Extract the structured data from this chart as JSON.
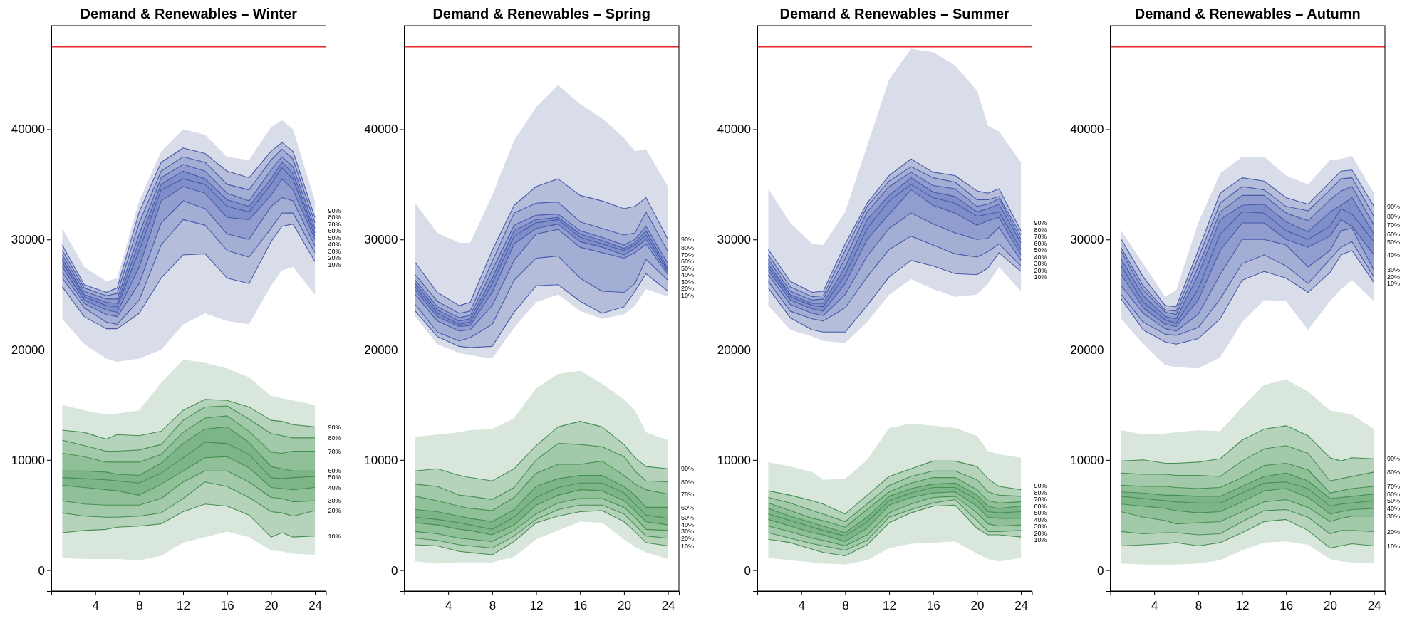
{
  "chart_data": [
    {
      "type": "line",
      "title": "Demand & Renewables – Winter",
      "x": [
        1,
        3,
        5,
        6,
        8,
        10,
        12,
        14,
        16,
        18,
        20,
        21,
        22,
        24
      ],
      "xlim": [
        0,
        25
      ],
      "xticks": [
        4,
        8,
        12,
        16,
        20,
        24
      ],
      "ylim": [
        -1900,
        49400
      ],
      "yticks": [
        0,
        10000,
        20000,
        30000,
        40000
      ],
      "legend": false,
      "grid": false,
      "marker": "none",
      "line_style": "solid",
      "ref_lines": [
        {
          "axis": "y",
          "value": 47500,
          "color": "#e8262a"
        }
      ],
      "series": [
        {
          "name": "10%",
          "color": "#4b61b5",
          "values": [
            25700,
            23000,
            21900,
            21900,
            23300,
            26500,
            28600,
            28700,
            26500,
            26000,
            29800,
            31200,
            31400,
            28000
          ]
        },
        {
          "name": "20%",
          "color": "#4b61b5",
          "values": [
            26500,
            23800,
            22500,
            22300,
            24500,
            29500,
            31800,
            31300,
            29000,
            28400,
            31000,
            32400,
            32400,
            28800
          ]
        },
        {
          "name": "30%",
          "color": "#4b61b5",
          "values": [
            27000,
            24200,
            23200,
            23000,
            26000,
            31500,
            33500,
            32800,
            30500,
            30000,
            33000,
            33800,
            33500,
            29400
          ]
        },
        {
          "name": "40%",
          "color": "#4b61b5",
          "values": [
            27500,
            24500,
            23600,
            23400,
            27500,
            33500,
            34800,
            34200,
            32000,
            31800,
            34000,
            35500,
            34500,
            30000
          ]
        },
        {
          "name": "50%",
          "color": "#4b61b5",
          "values": [
            27900,
            24800,
            24000,
            23900,
            29000,
            34500,
            35500,
            35000,
            33000,
            32500,
            35000,
            36500,
            35500,
            30300
          ],
          "lower": [
            22800,
            20500,
            19200,
            18900,
            19200,
            20000,
            22300,
            23300,
            22600,
            22300,
            25800,
            27200,
            27500,
            25000
          ],
          "upper": [
            31000,
            27500,
            26200,
            26500,
            33500,
            38000,
            40000,
            39500,
            37500,
            37200,
            40200,
            40800,
            40000,
            33500
          ]
        },
        {
          "name": "60%",
          "color": "#4b61b5",
          "values": [
            28200,
            25000,
            24300,
            24200,
            29800,
            35000,
            36200,
            35500,
            33600,
            33000,
            35500,
            37000,
            36000,
            30600
          ]
        },
        {
          "name": "70%",
          "color": "#4b61b5",
          "values": [
            28600,
            25300,
            24600,
            24600,
            30500,
            35600,
            36800,
            36200,
            34200,
            33500,
            36300,
            37500,
            36600,
            31000
          ]
        },
        {
          "name": "80%",
          "color": "#4b61b5",
          "values": [
            29000,
            25600,
            24900,
            25100,
            31500,
            36200,
            37500,
            37000,
            35000,
            34500,
            37200,
            38200,
            37300,
            31500
          ]
        },
        {
          "name": "90%",
          "color": "#4b61b5",
          "values": [
            29500,
            25900,
            25200,
            25600,
            32500,
            37000,
            38300,
            37800,
            36200,
            35600,
            38000,
            38800,
            38000,
            32000
          ]
        },
        {
          "name": "10%",
          "color": "#4a9a58",
          "values": [
            3400,
            3600,
            3700,
            3900,
            4000,
            4200,
            5300,
            6000,
            5800,
            5000,
            3000,
            3400,
            3000,
            3100
          ]
        },
        {
          "name": "20%",
          "color": "#4a9a58",
          "values": [
            5200,
            4900,
            4800,
            4800,
            4900,
            5200,
            6500,
            8000,
            7600,
            6600,
            5300,
            5200,
            4900,
            5400
          ]
        },
        {
          "name": "30%",
          "color": "#4a9a58",
          "values": [
            6300,
            6000,
            5900,
            5900,
            5900,
            6500,
            8000,
            9000,
            9000,
            8000,
            6600,
            6500,
            6200,
            6300
          ]
        },
        {
          "name": "40%",
          "color": "#4a9a58",
          "values": [
            7700,
            7500,
            7300,
            7200,
            6800,
            7800,
            9000,
            10200,
            10300,
            9300,
            7500,
            7400,
            7300,
            7500
          ]
        },
        {
          "name": "50%",
          "color": "#4a9a58",
          "values": [
            8400,
            8300,
            8200,
            8100,
            7900,
            8800,
            10200,
            11600,
            11500,
            10500,
            8400,
            8300,
            8400,
            8500
          ],
          "lower": [
            1100,
            1000,
            1000,
            1000,
            900,
            1300,
            2500,
            3000,
            3500,
            3000,
            1800,
            1700,
            1500,
            1400
          ],
          "upper": [
            15000,
            14500,
            14100,
            14200,
            14500,
            17000,
            19100,
            18800,
            18300,
            17500,
            15800,
            15600,
            15400,
            15000
          ]
        },
        {
          "name": "60%",
          "color": "#4a9a58",
          "values": [
            9000,
            9000,
            8900,
            8700,
            8600,
            9700,
            11500,
            12800,
            13000,
            11600,
            9400,
            9200,
            9000,
            9000
          ]
        },
        {
          "name": "70%",
          "color": "#4a9a58",
          "values": [
            10600,
            10300,
            9800,
            9800,
            9800,
            10500,
            12500,
            13800,
            14000,
            12600,
            10700,
            10600,
            10800,
            10800
          ]
        },
        {
          "name": "80%",
          "color": "#4a9a58",
          "values": [
            11800,
            11300,
            10800,
            10800,
            10900,
            11400,
            13600,
            14800,
            14900,
            13700,
            12400,
            12200,
            12000,
            12000
          ]
        },
        {
          "name": "90%",
          "color": "#4a9a58",
          "values": [
            12700,
            12500,
            11900,
            12300,
            12200,
            12600,
            14500,
            15500,
            15400,
            14800,
            13600,
            13500,
            13200,
            13000
          ]
        }
      ]
    },
    {
      "type": "line",
      "title": "Demand & Renewables – Spring",
      "x": [
        1,
        3,
        5,
        6,
        8,
        10,
        12,
        14,
        16,
        18,
        20,
        21,
        22,
        24
      ],
      "xlim": [
        0,
        25
      ],
      "xticks": [
        4,
        8,
        12,
        16,
        20,
        24
      ],
      "ylim": [
        -1900,
        49400
      ],
      "yticks": [
        0,
        10000,
        20000,
        30000,
        40000
      ],
      "legend": false,
      "grid": false,
      "marker": "none",
      "line_style": "solid",
      "ref_lines": [
        {
          "axis": "y",
          "value": 47500,
          "color": "#e8262a"
        }
      ],
      "series": [
        {
          "name": "10%",
          "color": "#4b61b5",
          "values": [
            23500,
            21200,
            20300,
            20200,
            20300,
            23400,
            25800,
            25900,
            24400,
            23300,
            23900,
            25300,
            26900,
            25300
          ]
        },
        {
          "name": "20%",
          "color": "#4b61b5",
          "values": [
            24100,
            21600,
            20800,
            21100,
            22300,
            26300,
            28300,
            28500,
            26500,
            25300,
            25200,
            26000,
            28200,
            26300
          ]
        },
        {
          "name": "30%",
          "color": "#4b61b5",
          "values": [
            25000,
            22600,
            21700,
            21800,
            24000,
            28100,
            30500,
            30900,
            29300,
            28800,
            28300,
            28800,
            29600,
            26800
          ]
        },
        {
          "name": "40%",
          "color": "#4b61b5",
          "values": [
            25400,
            23000,
            22100,
            22200,
            25200,
            29600,
            31000,
            31400,
            29800,
            29300,
            28600,
            29200,
            30000,
            27000
          ]
        },
        {
          "name": "50%",
          "color": "#4b61b5",
          "values": [
            25700,
            23300,
            22300,
            22500,
            26000,
            30300,
            31500,
            31800,
            30200,
            29600,
            29000,
            29500,
            30400,
            27200
          ],
          "lower": [
            23000,
            20500,
            19700,
            19500,
            19200,
            22000,
            24300,
            25000,
            23500,
            22800,
            23200,
            24000,
            25500,
            24800
          ],
          "upper": [
            33300,
            30600,
            29700,
            29700,
            34000,
            39000,
            42000,
            44000,
            42300,
            41000,
            39200,
            38000,
            38200,
            34800
          ]
        },
        {
          "name": "60%",
          "color": "#4b61b5",
          "values": [
            26000,
            23600,
            22600,
            22800,
            26500,
            30800,
            31800,
            32000,
            30500,
            29900,
            29200,
            29700,
            30800,
            27400
          ]
        },
        {
          "name": "70%",
          "color": "#4b61b5",
          "values": [
            26300,
            23900,
            22900,
            23100,
            27200,
            31300,
            32200,
            32300,
            30800,
            30200,
            29500,
            30000,
            31200,
            27800
          ]
        },
        {
          "name": "80%",
          "color": "#4b61b5",
          "values": [
            26800,
            24400,
            23300,
            23500,
            28000,
            32400,
            33300,
            33400,
            31600,
            31000,
            30400,
            30600,
            32500,
            28900
          ]
        },
        {
          "name": "90%",
          "color": "#4b61b5",
          "values": [
            27900,
            25200,
            24000,
            24300,
            29000,
            33100,
            34800,
            35500,
            34000,
            33500,
            32800,
            33000,
            33800,
            30000
          ]
        },
        {
          "name": "10%",
          "color": "#4a9a58",
          "values": [
            2300,
            2200,
            1700,
            1600,
            1400,
            2600,
            4300,
            4900,
            5300,
            5400,
            4400,
            3500,
            2500,
            2200
          ]
        },
        {
          "name": "20%",
          "color": "#4a9a58",
          "values": [
            2900,
            2700,
            2300,
            2200,
            2000,
            3100,
            4600,
            5500,
            5900,
            5900,
            5100,
            4100,
            3100,
            2900
          ]
        },
        {
          "name": "30%",
          "color": "#4a9a58",
          "values": [
            3500,
            3300,
            2900,
            2800,
            2600,
            3600,
            5100,
            6100,
            6500,
            6500,
            5700,
            4800,
            3700,
            3600
          ]
        },
        {
          "name": "40%",
          "color": "#4a9a58",
          "values": [
            4300,
            4100,
            3700,
            3600,
            3200,
            4100,
            5900,
            6800,
            7300,
            7200,
            6300,
            5400,
            4400,
            4100
          ]
        },
        {
          "name": "50%",
          "color": "#4a9a58",
          "values": [
            4800,
            4600,
            4300,
            4100,
            3700,
            4800,
            6600,
            7500,
            7900,
            7900,
            7000,
            6000,
            5000,
            4700
          ],
          "lower": [
            800,
            600,
            700,
            700,
            700,
            1200,
            2800,
            3600,
            4400,
            4300,
            2800,
            2100,
            1600,
            1000
          ],
          "upper": [
            12100,
            12300,
            12500,
            12700,
            12800,
            13800,
            16500,
            17800,
            18100,
            16900,
            15500,
            14500,
            12500,
            11800
          ]
        },
        {
          "name": "60%",
          "color": "#4a9a58",
          "values": [
            5500,
            5300,
            4900,
            4700,
            4400,
            5500,
            7600,
            8300,
            8600,
            8600,
            7600,
            6800,
            5700,
            5700
          ]
        },
        {
          "name": "70%",
          "color": "#4a9a58",
          "values": [
            6700,
            6300,
            5800,
            5600,
            5400,
            6600,
            8800,
            9600,
            9600,
            9900,
            8600,
            7800,
            7300,
            6900
          ]
        },
        {
          "name": "80%",
          "color": "#4a9a58",
          "values": [
            7800,
            7600,
            6800,
            6700,
            6400,
            7500,
            10000,
            11500,
            11400,
            11200,
            10300,
            9000,
            8100,
            8000
          ]
        },
        {
          "name": "90%",
          "color": "#4a9a58",
          "values": [
            9000,
            9200,
            8600,
            8400,
            8100,
            9200,
            11300,
            13000,
            13500,
            13000,
            11400,
            10200,
            9400,
            9200
          ]
        }
      ]
    },
    {
      "type": "line",
      "title": "Demand & Renewables – Summer",
      "x": [
        1,
        3,
        5,
        6,
        8,
        10,
        12,
        14,
        16,
        18,
        20,
        21,
        22,
        24
      ],
      "xlim": [
        0,
        25
      ],
      "xticks": [
        4,
        8,
        12,
        16,
        20,
        24
      ],
      "ylim": [
        -1900,
        49400
      ],
      "yticks": [
        0,
        10000,
        20000,
        30000,
        40000
      ],
      "legend": false,
      "grid": false,
      "marker": "none",
      "line_style": "solid",
      "ref_lines": [
        {
          "axis": "y",
          "value": 47500,
          "color": "#e8262a"
        }
      ],
      "series": [
        {
          "name": "10%",
          "color": "#4b61b5",
          "values": [
            25600,
            22900,
            21800,
            21600,
            21600,
            24000,
            26600,
            28100,
            27600,
            26900,
            26800,
            27400,
            28800,
            27100
          ]
        },
        {
          "name": "20%",
          "color": "#4b61b5",
          "values": [
            26200,
            23500,
            22800,
            22600,
            23800,
            26600,
            29100,
            30300,
            29500,
            28700,
            28400,
            28900,
            29600,
            27600
          ]
        },
        {
          "name": "30%",
          "color": "#4b61b5",
          "values": [
            26800,
            24100,
            23300,
            23100,
            25000,
            28500,
            31000,
            32400,
            31400,
            30600,
            30000,
            30100,
            31100,
            28100
          ]
        },
        {
          "name": "40%",
          "color": "#4b61b5",
          "values": [
            27200,
            24500,
            23700,
            23500,
            26000,
            30000,
            32300,
            34500,
            33100,
            32400,
            31300,
            31700,
            32000,
            28600
          ]
        },
        {
          "name": "50%",
          "color": "#4b61b5",
          "values": [
            27500,
            24800,
            24000,
            23900,
            26800,
            31000,
            33500,
            35000,
            33800,
            33300,
            32100,
            32300,
            32500,
            29100
          ],
          "lower": [
            24000,
            21800,
            21200,
            20800,
            20600,
            22500,
            25000,
            26400,
            25500,
            24800,
            25000,
            26000,
            27500,
            25300
          ],
          "upper": [
            34600,
            31500,
            29600,
            29500,
            32500,
            38500,
            44500,
            47300,
            47000,
            45800,
            43500,
            40300,
            39800,
            37000
          ]
        },
        {
          "name": "60%",
          "color": "#4b61b5",
          "values": [
            27800,
            25000,
            24200,
            24200,
            27500,
            31800,
            34000,
            35600,
            34300,
            33900,
            32500,
            32800,
            33200,
            29700
          ]
        },
        {
          "name": "70%",
          "color": "#4b61b5",
          "values": [
            28200,
            25300,
            24500,
            24600,
            28300,
            32500,
            34800,
            36100,
            34900,
            34600,
            33000,
            33200,
            33700,
            30000
          ]
        },
        {
          "name": "80%",
          "color": "#4b61b5",
          "values": [
            28600,
            25700,
            24800,
            24900,
            29000,
            33000,
            35300,
            36600,
            35600,
            35200,
            33600,
            33600,
            33900,
            30400
          ]
        },
        {
          "name": "90%",
          "color": "#4b61b5",
          "values": [
            29100,
            26200,
            25200,
            25300,
            29600,
            33300,
            35800,
            37300,
            36100,
            35800,
            34400,
            34200,
            34600,
            30800
          ]
        },
        {
          "name": "10%",
          "color": "#4a9a58",
          "values": [
            2800,
            2500,
            1900,
            1600,
            1300,
            2300,
            4300,
            5200,
            5800,
            5900,
            3800,
            3200,
            3200,
            3000
          ]
        },
        {
          "name": "20%",
          "color": "#4a9a58",
          "values": [
            3400,
            2900,
            2400,
            2200,
            1800,
            2700,
            4800,
            5500,
            6100,
            6400,
            4500,
            3500,
            3500,
            3600
          ]
        },
        {
          "name": "30%",
          "color": "#4a9a58",
          "values": [
            4000,
            3500,
            2900,
            2700,
            2200,
            3200,
            5200,
            6000,
            6600,
            6700,
            5200,
            4200,
            4000,
            4100
          ]
        },
        {
          "name": "40%",
          "color": "#4a9a58",
          "values": [
            4600,
            4000,
            3400,
            3200,
            2600,
            3800,
            5900,
            6600,
            7000,
            7100,
            5800,
            4800,
            4700,
            4700
          ]
        },
        {
          "name": "50%",
          "color": "#4a9a58",
          "values": [
            5100,
            4500,
            3900,
            3600,
            3100,
            4400,
            6300,
            7000,
            7500,
            7500,
            6400,
            5300,
            5200,
            5300
          ],
          "lower": [
            1100,
            900,
            700,
            600,
            500,
            900,
            2000,
            2400,
            2500,
            2600,
            1500,
            1000,
            800,
            1100
          ],
          "upper": [
            9800,
            9400,
            8900,
            8200,
            8300,
            10000,
            12900,
            13300,
            13100,
            12900,
            12200,
            10800,
            10500,
            10200
          ]
        },
        {
          "name": "60%",
          "color": "#4a9a58",
          "values": [
            5600,
            4900,
            4300,
            4000,
            3400,
            4800,
            6700,
            7400,
            7800,
            7900,
            6800,
            5800,
            5600,
            5800
          ]
        },
        {
          "name": "70%",
          "color": "#4a9a58",
          "values": [
            6100,
            5400,
            4700,
            4500,
            3900,
            5500,
            7100,
            7900,
            8400,
            8400,
            7300,
            6300,
            6100,
            6200
          ]
        },
        {
          "name": "80%",
          "color": "#4a9a58",
          "values": [
            6600,
            6100,
            5400,
            5100,
            4400,
            6000,
            7700,
            8500,
            9000,
            9000,
            8200,
            7100,
            6800,
            6700
          ]
        },
        {
          "name": "90%",
          "color": "#4a9a58",
          "values": [
            7200,
            6800,
            6300,
            6000,
            5100,
            6800,
            8500,
            9200,
            9900,
            9900,
            9400,
            8300,
            7600,
            7300
          ]
        }
      ]
    },
    {
      "type": "line",
      "title": "Demand & Renewables – Autumn",
      "x": [
        1,
        3,
        5,
        6,
        8,
        10,
        12,
        14,
        16,
        18,
        20,
        21,
        22,
        24
      ],
      "xlim": [
        0,
        25
      ],
      "xticks": [
        4,
        8,
        12,
        16,
        20,
        24
      ],
      "ylim": [
        -1900,
        49400
      ],
      "yticks": [
        0,
        10000,
        20000,
        30000,
        40000
      ],
      "legend": false,
      "grid": false,
      "marker": "none",
      "line_style": "solid",
      "ref_lines": [
        {
          "axis": "y",
          "value": 47500,
          "color": "#e8262a"
        }
      ],
      "series": [
        {
          "name": "10%",
          "color": "#4b61b5",
          "values": [
            24600,
            21800,
            20700,
            20500,
            21000,
            22800,
            26300,
            27100,
            26500,
            25200,
            27000,
            28600,
            29000,
            26100
          ]
        },
        {
          "name": "20%",
          "color": "#4b61b5",
          "values": [
            25000,
            22500,
            21400,
            21300,
            22000,
            24600,
            27800,
            28600,
            27600,
            26000,
            28200,
            29300,
            29800,
            26600
          ]
        },
        {
          "name": "30%",
          "color": "#4b61b5",
          "values": [
            25800,
            23300,
            21900,
            21700,
            23200,
            26800,
            30000,
            30000,
            29500,
            27500,
            29000,
            30800,
            31000,
            27200
          ]
        },
        {
          "name": "40%",
          "color": "#4b61b5",
          "values": [
            26800,
            23800,
            22300,
            22100,
            24500,
            29000,
            31500,
            31500,
            30000,
            29300,
            30300,
            31800,
            31200,
            28600
          ]
        },
        {
          "name": "50%",
          "color": "#4b61b5",
          "values": [
            27600,
            24300,
            22700,
            22400,
            25500,
            30500,
            32500,
            32400,
            30800,
            30000,
            31200,
            32800,
            32300,
            29800
          ],
          "lower": [
            22800,
            20500,
            18600,
            18400,
            18300,
            19300,
            22500,
            24500,
            24400,
            21800,
            24400,
            25500,
            26300,
            24400
          ],
          "upper": [
            30800,
            27800,
            24800,
            25400,
            31500,
            36000,
            37500,
            37500,
            35800,
            35000,
            37200,
            37300,
            37600,
            34200
          ]
        },
        {
          "name": "60%",
          "color": "#4b61b5",
          "values": [
            28200,
            24900,
            23000,
            22800,
            26800,
            31800,
            33100,
            33200,
            31600,
            30700,
            32500,
            33100,
            33800,
            30500
          ]
        },
        {
          "name": "70%",
          "color": "#4b61b5",
          "values": [
            28900,
            25400,
            23400,
            23200,
            27500,
            32500,
            34000,
            34000,
            32400,
            31700,
            33600,
            34400,
            34800,
            31300
          ]
        },
        {
          "name": "80%",
          "color": "#4b61b5",
          "values": [
            29200,
            25800,
            23600,
            23500,
            28300,
            33300,
            34800,
            34500,
            33000,
            32600,
            34500,
            35500,
            35600,
            32100
          ]
        },
        {
          "name": "90%",
          "color": "#4b61b5",
          "values": [
            30000,
            26600,
            24000,
            23900,
            29000,
            34200,
            35600,
            35300,
            33800,
            33200,
            35200,
            36200,
            36300,
            33000
          ]
        },
        {
          "name": "10%",
          "color": "#4a9a58",
          "values": [
            2200,
            2300,
            2400,
            2500,
            2200,
            2500,
            3400,
            4400,
            4600,
            3600,
            2000,
            2200,
            2400,
            2200
          ]
        },
        {
          "name": "20%",
          "color": "#4a9a58",
          "values": [
            3500,
            3300,
            3400,
            3400,
            3200,
            3300,
            4400,
            5400,
            5500,
            4800,
            3300,
            3600,
            3600,
            3500
          ]
        },
        {
          "name": "30%",
          "color": "#4a9a58",
          "values": [
            5300,
            4800,
            4500,
            4200,
            4300,
            4400,
            5300,
            6200,
            6400,
            5700,
            4400,
            4700,
            4900,
            4900
          ]
        },
        {
          "name": "40%",
          "color": "#4a9a58",
          "values": [
            6000,
            5800,
            5600,
            5400,
            5200,
            5300,
            6200,
            7200,
            7400,
            6600,
            5100,
            5300,
            5500,
            5600
          ]
        },
        {
          "name": "50%",
          "color": "#4a9a58",
          "values": [
            6700,
            6500,
            6300,
            6200,
            6100,
            6100,
            7000,
            7900,
            8000,
            7400,
            5800,
            6000,
            6100,
            6300
          ],
          "lower": [
            600,
            500,
            500,
            500,
            600,
            900,
            1800,
            2500,
            2600,
            2300,
            1000,
            800,
            700,
            600
          ],
          "upper": [
            12700,
            12300,
            12400,
            12500,
            12700,
            12600,
            14800,
            16800,
            17300,
            16200,
            14500,
            14300,
            14100,
            12800
          ]
        },
        {
          "name": "60%",
          "color": "#4a9a58",
          "values": [
            7100,
            7000,
            6800,
            6800,
            6700,
            6700,
            7600,
            8500,
            8800,
            8100,
            6500,
            6600,
            6700,
            6900
          ]
        },
        {
          "name": "70%",
          "color": "#4a9a58",
          "values": [
            7700,
            7600,
            7600,
            7500,
            7400,
            7500,
            8400,
            9500,
            9700,
            9100,
            7000,
            7200,
            7400,
            7600
          ]
        },
        {
          "name": "80%",
          "color": "#4a9a58",
          "values": [
            8800,
            8700,
            8700,
            8600,
            8600,
            8500,
            9900,
            11000,
            11300,
            10600,
            8100,
            8300,
            8500,
            8900
          ]
        },
        {
          "name": "90%",
          "color": "#4a9a58",
          "values": [
            9900,
            10000,
            9700,
            9700,
            9800,
            10100,
            11800,
            12800,
            13100,
            12200,
            10200,
            9900,
            10200,
            10100
          ]
        }
      ]
    }
  ]
}
